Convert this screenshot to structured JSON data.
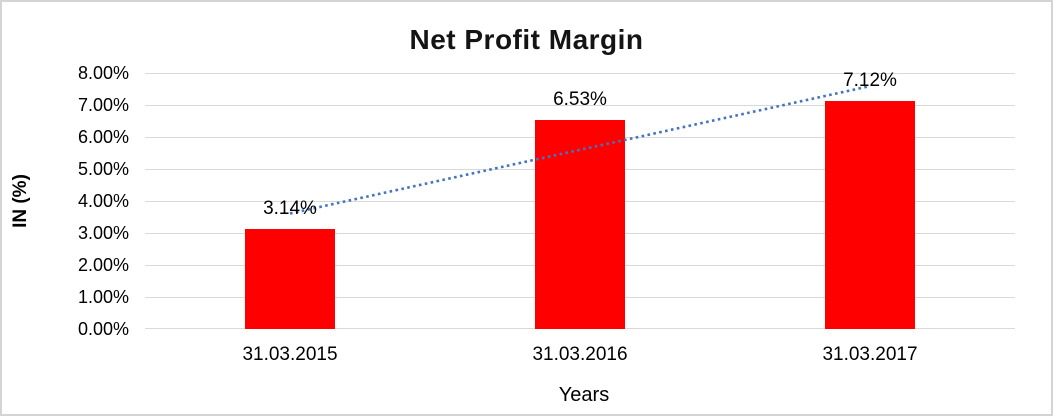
{
  "chart_data": {
    "type": "bar",
    "title": "Net Profit Margin",
    "categories": [
      "31.03.2015",
      "31.03.2016",
      "31.03.2017"
    ],
    "values": [
      3.14,
      6.53,
      7.12
    ],
    "data_labels": [
      "3.14%",
      "6.53%",
      "7.12%"
    ],
    "xlabel": "Years",
    "ylabel": "IN (%)",
    "ylim": [
      0,
      8
    ],
    "ytick_labels": [
      "0.00%",
      "1.00%",
      "2.00%",
      "3.00%",
      "4.00%",
      "5.00%",
      "6.00%",
      "7.00%",
      "8.00%"
    ],
    "grid": true,
    "legend": false,
    "bar_color": "#FF0000",
    "gridline_color": "#D9D9D9",
    "border_color": "#D4D4D4",
    "text_color": "#000000",
    "trendline": {
      "type": "linear",
      "style": "dotted",
      "color": "#4472C4",
      "start_value": 3.61,
      "end_value": 7.59
    }
  }
}
